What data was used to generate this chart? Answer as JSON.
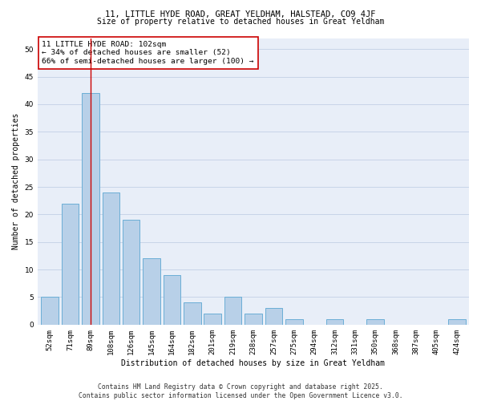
{
  "title_line1": "11, LITTLE HYDE ROAD, GREAT YELDHAM, HALSTEAD, CO9 4JF",
  "title_line2": "Size of property relative to detached houses in Great Yeldham",
  "xlabel": "Distribution of detached houses by size in Great Yeldham",
  "ylabel": "Number of detached properties",
  "categories": [
    "52sqm",
    "71sqm",
    "89sqm",
    "108sqm",
    "126sqm",
    "145sqm",
    "164sqm",
    "182sqm",
    "201sqm",
    "219sqm",
    "238sqm",
    "257sqm",
    "275sqm",
    "294sqm",
    "312sqm",
    "331sqm",
    "350sqm",
    "368sqm",
    "387sqm",
    "405sqm",
    "424sqm"
  ],
  "values": [
    5,
    22,
    42,
    24,
    19,
    12,
    9,
    4,
    2,
    5,
    2,
    3,
    1,
    0,
    1,
    0,
    1,
    0,
    0,
    0,
    1
  ],
  "bar_color": "#b8d0e8",
  "bar_edge_color": "#6baed6",
  "highlight_bar_index": 2,
  "highlight_line_color": "#cc0000",
  "annotation_text": "11 LITTLE HYDE ROAD: 102sqm\n← 34% of detached houses are smaller (52)\n66% of semi-detached houses are larger (100) →",
  "annotation_box_color": "#ffffff",
  "annotation_box_edge_color": "#cc0000",
  "ylim": [
    0,
    52
  ],
  "yticks": [
    0,
    5,
    10,
    15,
    20,
    25,
    30,
    35,
    40,
    45,
    50
  ],
  "grid_color": "#c8d4e8",
  "background_color": "#e8eef8",
  "footer_text": "Contains HM Land Registry data © Crown copyright and database right 2025.\nContains public sector information licensed under the Open Government Licence v3.0.",
  "title_fontsize": 7.5,
  "subtitle_fontsize": 7.0,
  "axis_label_fontsize": 7.0,
  "tick_fontsize": 6.5,
  "annotation_fontsize": 6.8,
  "footer_fontsize": 5.8
}
